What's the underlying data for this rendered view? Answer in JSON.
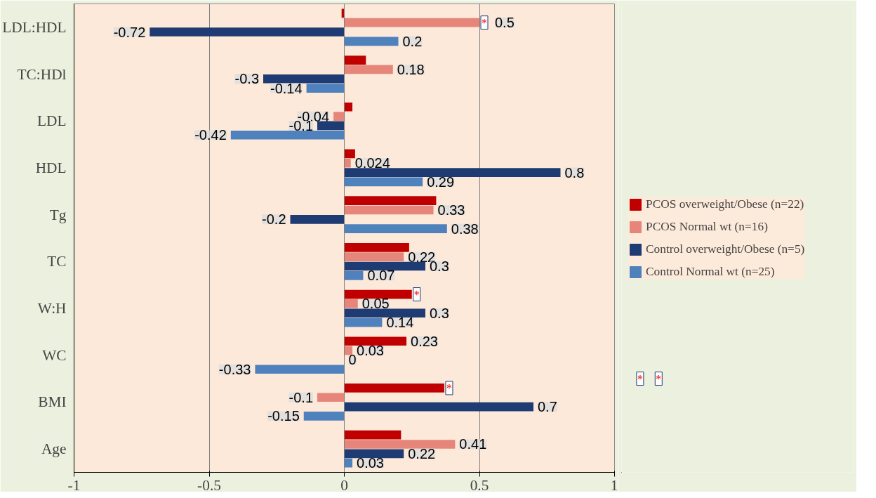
{
  "chart_data": {
    "type": "bar",
    "orientation": "horizontal",
    "categories": [
      "LDL:HDL",
      "TC:HDl",
      "LDL",
      "HDL",
      "Tg",
      "TC",
      "W:H",
      "WC",
      "BMI",
      "Age"
    ],
    "series": [
      {
        "name": "PCOS overweight/Obese (n=22)",
        "color": "#c00000",
        "values": [
          -0.01,
          0.08,
          0.03,
          0.04,
          0.34,
          0.24,
          0.25,
          0.23,
          0.37,
          0.21
        ],
        "value_labels": [
          null,
          null,
          null,
          null,
          null,
          null,
          null,
          "0.23",
          null,
          null
        ]
      },
      {
        "name": "PCOS Normal wt (n=16)",
        "color": "#e6867a",
        "values": [
          0.5,
          0.18,
          -0.04,
          0.024,
          0.33,
          0.22,
          0.05,
          0.03,
          -0.1,
          0.41
        ],
        "value_labels": [
          "0.5",
          "0.18",
          "-0.04",
          "0.024",
          "0.33",
          "0.22",
          "0.05",
          "0.03",
          "-0.1",
          "0.41"
        ]
      },
      {
        "name": "Control overweight/Obese (n=5)",
        "color": "#1f3b73",
        "values": [
          -0.72,
          -0.3,
          -0.1,
          0.8,
          -0.2,
          0.3,
          0.3,
          0,
          0.7,
          0.22
        ],
        "value_labels": [
          "-0.72",
          "-0.3",
          "-0.1",
          "0.8",
          "-0.2",
          "0.3",
          "0.3",
          "0",
          "0.7",
          "0.22"
        ]
      },
      {
        "name": "Control Normal wt (n=25)",
        "color": "#4f81bd",
        "values": [
          0.2,
          -0.14,
          -0.42,
          0.29,
          0.38,
          0.07,
          0.14,
          -0.33,
          -0.15,
          0.03
        ],
        "value_labels": [
          "0.2",
          "-0.14",
          "-0.42",
          "0.29",
          "0.38",
          "0.07",
          "0.14",
          "-0.33",
          "-0.15",
          "0.03"
        ]
      }
    ],
    "annotations": [
      {
        "text": "*",
        "x": 0.5,
        "y": "LDL:HDL"
      },
      "*",
      {
        "text": "*",
        "x": 0.25,
        "y": "W:H"
      },
      "*",
      {
        "text": "*",
        "x": 0.37,
        "y": "BMI"
      }
    ],
    "xlim": [
      -1,
      1
    ],
    "xticks": [
      -1,
      -0.5,
      0,
      0.5,
      1
    ],
    "grid": "x",
    "legend": "right"
  }
}
